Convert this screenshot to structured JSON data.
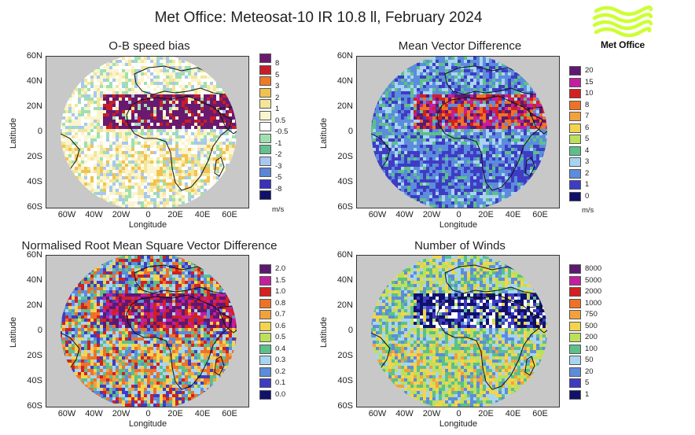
{
  "header": {
    "title": "Met Office: Meteosat-10 IR 10.8 ll, February 2024"
  },
  "logo": {
    "text": "Met Office",
    "color": "#ccff33"
  },
  "axes": {
    "y_ticks": [
      "60N",
      "40N",
      "20N",
      "0",
      "20S",
      "40S",
      "60S"
    ],
    "x_ticks": [
      "60W",
      "40W",
      "20W",
      "0",
      "20E",
      "40E",
      "60E"
    ],
    "xlabel": "Longitude",
    "ylabel": "Latitude"
  },
  "panels": [
    {
      "id": "ob",
      "title": "O-B speed bias",
      "unit": "m/s",
      "legend": [
        {
          "label": "8",
          "color": "#6a1a6e"
        },
        {
          "label": "5",
          "color": "#c81e28"
        },
        {
          "label": "3",
          "color": "#ee7a26"
        },
        {
          "label": "2",
          "color": "#f2c24e"
        },
        {
          "label": "1",
          "color": "#f3e69a"
        },
        {
          "label": "0.5",
          "color": "#fbf5cf"
        },
        {
          "label": "-0.5",
          "color": "#ffffff"
        },
        {
          "label": "-1",
          "color": "#9fe0b0"
        },
        {
          "label": "-2",
          "color": "#64c08e"
        },
        {
          "label": "-3",
          "color": "#a8c8f0"
        },
        {
          "label": "-5",
          "color": "#5a86d8"
        },
        {
          "label": "-8",
          "color": "#3a32b8"
        },
        {
          "label": "",
          "color": "#10106a"
        }
      ]
    },
    {
      "id": "mvd",
      "title": "Mean Vector Difference",
      "unit": "m/s",
      "legend": [
        {
          "label": "20",
          "color": "#5e1872"
        },
        {
          "label": "15",
          "color": "#c41ea0"
        },
        {
          "label": "10",
          "color": "#d42020"
        },
        {
          "label": "8",
          "color": "#ee7226"
        },
        {
          "label": "7",
          "color": "#f3a13c"
        },
        {
          "label": "6",
          "color": "#f3d44e"
        },
        {
          "label": "5",
          "color": "#bde05c"
        },
        {
          "label": "4",
          "color": "#5cc08a"
        },
        {
          "label": "3",
          "color": "#a8d4f0"
        },
        {
          "label": "2",
          "color": "#5c8cdc"
        },
        {
          "label": "1",
          "color": "#3f3cc4"
        },
        {
          "label": "0",
          "color": "#11116c"
        }
      ]
    },
    {
      "id": "nrmsvd",
      "title": "Normalised Root Mean Square Vector Difference",
      "unit": "",
      "legend": [
        {
          "label": "2.0",
          "color": "#5e1872"
        },
        {
          "label": "1.5",
          "color": "#c41ea0"
        },
        {
          "label": "1.0",
          "color": "#d42020"
        },
        {
          "label": "0.8",
          "color": "#ee7226"
        },
        {
          "label": "0.7",
          "color": "#f3a13c"
        },
        {
          "label": "0.6",
          "color": "#f3d44e"
        },
        {
          "label": "0.5",
          "color": "#bde05c"
        },
        {
          "label": "0.4",
          "color": "#5cc08a"
        },
        {
          "label": "0.3",
          "color": "#a8d4f0"
        },
        {
          "label": "0.2",
          "color": "#5c8cdc"
        },
        {
          "label": "0.1",
          "color": "#3f3cc4"
        },
        {
          "label": "0.0",
          "color": "#11116c"
        }
      ]
    },
    {
      "id": "nwinds",
      "title": "Number of Winds",
      "unit": "",
      "legend": [
        {
          "label": "8000",
          "color": "#5e1872"
        },
        {
          "label": "5000",
          "color": "#c41ea0"
        },
        {
          "label": "2000",
          "color": "#d42020"
        },
        {
          "label": "1000",
          "color": "#ee7226"
        },
        {
          "label": "750",
          "color": "#f3a13c"
        },
        {
          "label": "500",
          "color": "#f3d44e"
        },
        {
          "label": "200",
          "color": "#bde05c"
        },
        {
          "label": "100",
          "color": "#5cc08a"
        },
        {
          "label": "50",
          "color": "#a8d4f0"
        },
        {
          "label": "20",
          "color": "#5c8cdc"
        },
        {
          "label": "5",
          "color": "#3f3cc4"
        },
        {
          "label": "1",
          "color": "#11116c"
        }
      ]
    }
  ]
}
